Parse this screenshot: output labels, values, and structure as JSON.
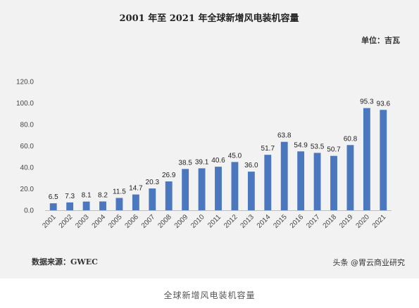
{
  "caption": "全球新增风电装机容量",
  "watermark": "头条 @胃云商业研究",
  "chart_data": {
    "type": "bar",
    "title": "2001 年至 2021 年全球新增风电装机容量",
    "unit": "单位：吉瓦",
    "source": "数据来源：GWEC",
    "xlabel": "",
    "ylabel": "",
    "ylim": [
      0,
      120
    ],
    "yticks": [
      "0.0",
      "20.0",
      "40.0",
      "60.0",
      "80.0",
      "100.0",
      "120.0"
    ],
    "categories": [
      "2001",
      "2002",
      "2003",
      "2004",
      "2005",
      "2006",
      "2007",
      "2008",
      "2009",
      "2010",
      "2011",
      "2012",
      "2013",
      "2014",
      "2015",
      "2016",
      "2017",
      "2018",
      "2019",
      "2020",
      "2021"
    ],
    "values": [
      6.5,
      7.3,
      8.1,
      8.2,
      11.5,
      14.7,
      20.3,
      26.9,
      38.5,
      39.1,
      40.6,
      45.0,
      36.0,
      51.7,
      63.8,
      54.9,
      53.5,
      50.7,
      60.8,
      95.3,
      93.6
    ],
    "value_labels": [
      "6.5",
      "7.3",
      "8.1",
      "8.2",
      "11.5",
      "14.7",
      "20.3",
      "26.9",
      "38.5",
      "39.1",
      "40.6",
      "45.0",
      "36.0",
      "51.7",
      "63.8",
      "54.9",
      "53.5",
      "50.7",
      "60.8",
      "95.3",
      "93.6"
    ],
    "bar_color": "#4a77bd",
    "grid": false,
    "legend": "none"
  }
}
